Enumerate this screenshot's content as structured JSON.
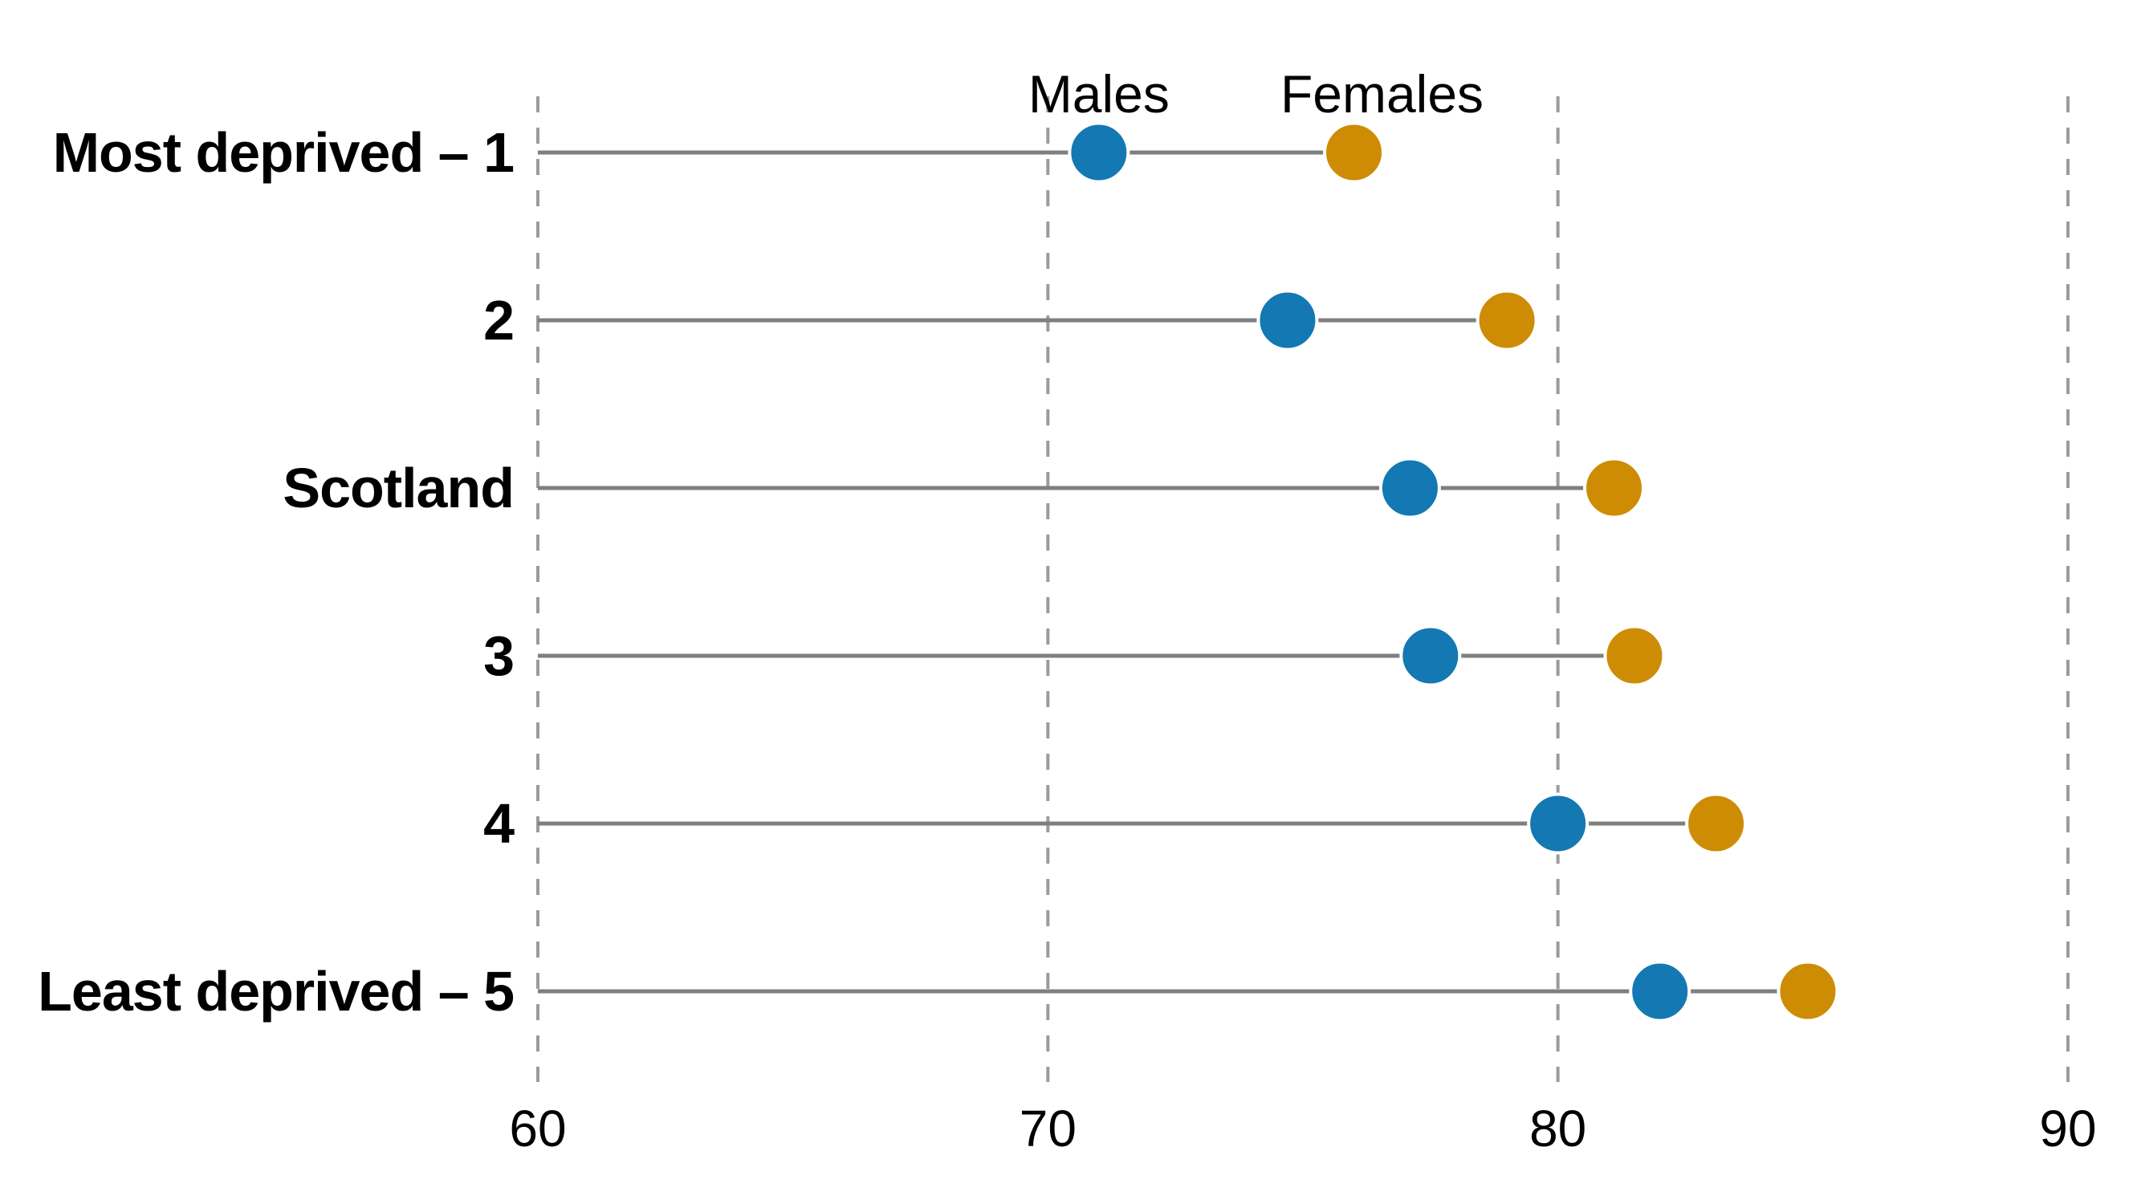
{
  "chart_data": {
    "type": "scatter",
    "subtype": "dumbbell-dot-plot",
    "title": "",
    "categories": [
      "Most deprived – 1",
      "2",
      "Scotland",
      "3",
      "4",
      "Least deprived – 5"
    ],
    "series": [
      {
        "name": "Males",
        "color": "#1478B2",
        "values": [
          71.0,
          74.7,
          77.1,
          77.5,
          80.0,
          82.0
        ]
      },
      {
        "name": "Females",
        "color": "#CE8C05",
        "values": [
          76.0,
          79.0,
          81.1,
          81.5,
          83.1,
          84.9
        ]
      }
    ],
    "x_axis": {
      "min": 60,
      "max": 90,
      "ticks": [
        60,
        70,
        80,
        90
      ],
      "tick_labels": [
        "60",
        "70",
        "80",
        "90"
      ],
      "gridlines": "dashed-vertical"
    },
    "legend": {
      "position": "above-first-row",
      "males_label": "Males",
      "females_label": "Females"
    },
    "colors": {
      "connector_line": "#7f7f7f",
      "gridline": "#9b9b9b",
      "text": "#000000",
      "background": "#ffffff",
      "dot_halo": "#ffffff"
    }
  }
}
